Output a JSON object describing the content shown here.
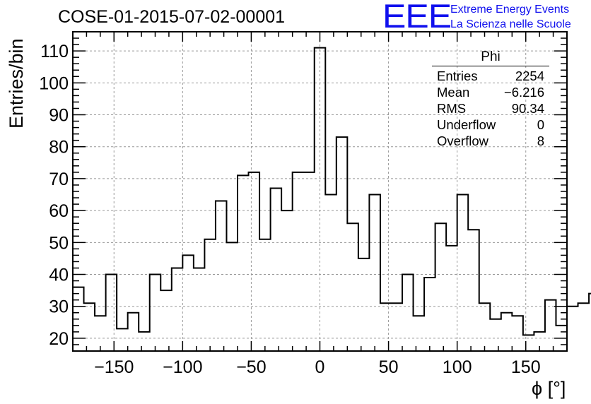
{
  "header": {
    "title": "COSE-01-2015-07-02-00001",
    "logo_text": "EEE",
    "logo_line1": "Extreme Energy Events",
    "logo_line2": "La Scienza nelle Scuole"
  },
  "stats_box": {
    "name": "Phi",
    "rows": [
      {
        "label": "Entries",
        "value": "2254"
      },
      {
        "label": "Mean",
        "value": "−6.216"
      },
      {
        "label": "RMS",
        "value": "90.34"
      },
      {
        "label": "Underflow",
        "value": "0"
      },
      {
        "label": "Overflow",
        "value": "8"
      }
    ]
  },
  "chart_data": {
    "type": "histogram",
    "title": "COSE-01-2015-07-02-00001",
    "xlabel": "ϕ [°]",
    "ylabel": "Entries/bin",
    "xlim": [
      -180,
      180
    ],
    "ylim": [
      16,
      116
    ],
    "grid": true,
    "bin_width": 8,
    "bin_edges_start": -180,
    "xticks": [
      -150,
      -100,
      -50,
      0,
      50,
      100,
      150
    ],
    "xtick_labels": [
      "−150",
      "−100",
      "−50",
      "0",
      "50",
      "100",
      "150"
    ],
    "yticks": [
      20,
      30,
      40,
      50,
      60,
      70,
      80,
      90,
      100,
      110
    ],
    "values": [
      36,
      31,
      27,
      40,
      23,
      28,
      22,
      40,
      35,
      42,
      46,
      42,
      51,
      63,
      50,
      71,
      72,
      51,
      67,
      60,
      72,
      72,
      111,
      65,
      83,
      56,
      45,
      65,
      31,
      31,
      40,
      27,
      39,
      56,
      49,
      65,
      54,
      31,
      26,
      28,
      27,
      21,
      22,
      32,
      24,
      30,
      31,
      34
    ],
    "colors": {
      "line": "#000000",
      "grid": "#999999",
      "logo": "#1010ee"
    }
  }
}
